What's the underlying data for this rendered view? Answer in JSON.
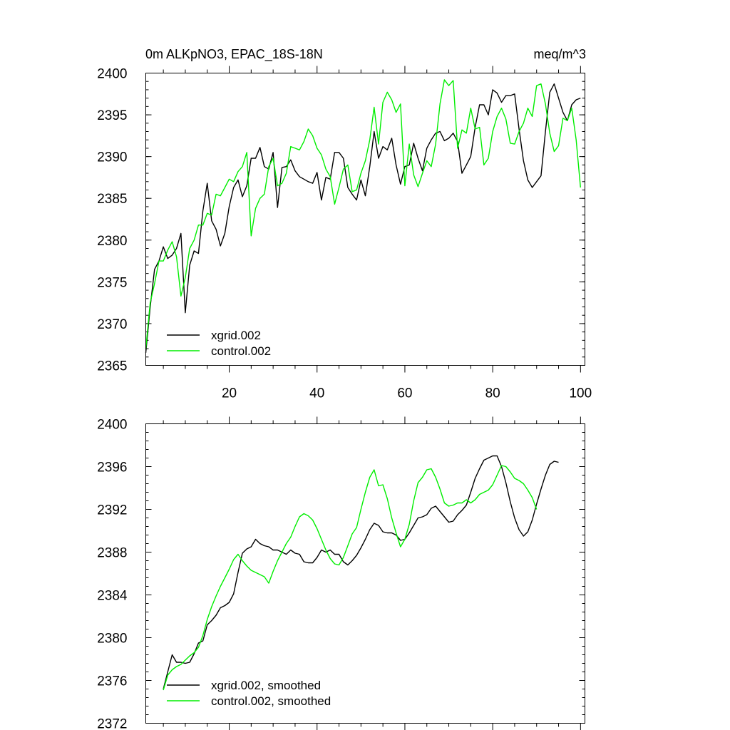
{
  "colors": {
    "xgrid": "#000000",
    "control": "#00ee00"
  },
  "chart_data": [
    {
      "type": "line",
      "title": "0m ALKpNO3, EPAC_18S-18N",
      "units": "meq/m^3",
      "xlabel": "",
      "ylabel": "",
      "xlim": [
        1,
        101
      ],
      "ylim": [
        2365,
        2400
      ],
      "xticks": [
        20,
        40,
        60,
        80,
        100
      ],
      "yticks": [
        2365,
        2370,
        2375,
        2380,
        2385,
        2390,
        2395,
        2400
      ],
      "xtick_labels": [
        "20",
        "40",
        "60",
        "80",
        "100"
      ],
      "ytick_labels": [
        "2365",
        "2370",
        "2375",
        "2380",
        "2385",
        "2390",
        "2395",
        "2400"
      ],
      "legend_position": "bottom-left",
      "series": [
        {
          "name": "xgrid.002",
          "color_key": "xgrid",
          "x_start": 1,
          "values": [
            2366.5,
            2372,
            2376.5,
            2377.5,
            2379.2,
            2377.8,
            2378.2,
            2379.0,
            2380.8,
            2371.3,
            2377.0,
            2378.7,
            2378.4,
            2383.5,
            2386.8,
            2382.3,
            2381.3,
            2379.3,
            2380.8,
            2384.0,
            2386.3,
            2387.2,
            2385.2,
            2386.5,
            2389.8,
            2389.8,
            2391.1,
            2388.8,
            2388.5,
            2390.5,
            2383.9,
            2388.7,
            2388.8,
            2389.6,
            2388.3,
            2387.6,
            2387.3,
            2387.0,
            2386.8,
            2388.1,
            2384.8,
            2387.5,
            2387.3,
            2390.5,
            2390.5,
            2389.8,
            2386.3,
            2385.5,
            2384.8,
            2387.2,
            2385.3,
            2388.8,
            2393.0,
            2389.8,
            2391.2,
            2390.8,
            2392.2,
            2389.0,
            2386.7,
            2388.8,
            2389.0,
            2391.6,
            2389.8,
            2388.3,
            2391.0,
            2392.0,
            2392.8,
            2393.0,
            2391.9,
            2392.2,
            2392.8,
            2391.8,
            2388.0,
            2389.0,
            2390.0,
            2393.5,
            2396.2,
            2396.2,
            2395.0,
            2398.0,
            2397.6,
            2396.5,
            2397.3,
            2397.3,
            2397.5,
            2393.3,
            2389.5,
            2387.2,
            2386.3,
            2387.0,
            2387.7,
            2393.0,
            2397.7,
            2398.7,
            2397.0,
            2395.3,
            2394.3,
            2396.2,
            2396.8,
            2397.0
          ]
        },
        {
          "name": "control.002",
          "color_key": "control",
          "x_start": 1,
          "values": [
            2367.0,
            2372.5,
            2374.8,
            2377.5,
            2377.5,
            2378.8,
            2379.8,
            2378.0,
            2373.3,
            2375.5,
            2379.0,
            2380.0,
            2381.8,
            2381.8,
            2383.2,
            2383.0,
            2385.5,
            2385.3,
            2386.3,
            2387.3,
            2387.0,
            2388.2,
            2388.8,
            2390.5,
            2380.5,
            2383.8,
            2385.0,
            2385.5,
            2388.8,
            2389.8,
            2386.5,
            2386.8,
            2388.0,
            2391.2,
            2391.0,
            2390.8,
            2391.8,
            2393.3,
            2392.5,
            2391.0,
            2390.2,
            2388.5,
            2387.6,
            2384.3,
            2386.3,
            2388.5,
            2389.0,
            2385.8,
            2386.0,
            2388.0,
            2389.5,
            2392.0,
            2395.9,
            2391.5,
            2396.5,
            2397.7,
            2396.8,
            2395.3,
            2396.3,
            2386.5,
            2391.5,
            2387.8,
            2386.4,
            2388.0,
            2389.5,
            2388.8,
            2391.5,
            2396.3,
            2399.2,
            2398.5,
            2399.1,
            2391.0,
            2393.2,
            2392.8,
            2395.8,
            2393.3,
            2393.5,
            2389.0,
            2389.8,
            2393.0,
            2394.8,
            2395.8,
            2394.5,
            2391.6,
            2391.5,
            2393.0,
            2394.0,
            2395.8,
            2394.8,
            2398.5,
            2398.7,
            2396.3,
            2392.8,
            2390.6,
            2391.3,
            2394.6,
            2394.3,
            2395.8,
            2392.0,
            2386.3
          ]
        }
      ]
    },
    {
      "type": "line",
      "title": "",
      "xlabel": "",
      "ylabel": "",
      "xlim": [
        1,
        101
      ],
      "ylim": [
        2372,
        2400
      ],
      "xticks": [
        20,
        40,
        60,
        80,
        100
      ],
      "yticks": [
        2372,
        2376,
        2380,
        2384,
        2388,
        2392,
        2396,
        2400
      ],
      "ytick_labels": [
        "2372",
        "2376",
        "2380",
        "2384",
        "2388",
        "2392",
        "2396",
        "2400"
      ],
      "legend_position": "bottom-left",
      "series": [
        {
          "name": "xgrid.002, smoothed",
          "color_key": "xgrid",
          "x_start": 5,
          "values": [
            2375.2,
            2376.8,
            2378.4,
            2377.7,
            2377.7,
            2377.6,
            2377.7,
            2378.5,
            2379.5,
            2379.7,
            2381.2,
            2381.6,
            2382.1,
            2382.8,
            2383.0,
            2383.3,
            2384.1,
            2386.1,
            2387.9,
            2388.3,
            2388.5,
            2389.2,
            2388.8,
            2388.6,
            2388.5,
            2388.2,
            2388.2,
            2388.0,
            2387.8,
            2388.2,
            2387.9,
            2387.8,
            2387.1,
            2387.0,
            2387.0,
            2387.5,
            2388.2,
            2388.0,
            2388.2,
            2387.8,
            2387.8,
            2387.1,
            2386.8,
            2387.2,
            2387.7,
            2388.4,
            2389.2,
            2390.1,
            2390.7,
            2390.5,
            2389.9,
            2389.8,
            2389.8,
            2389.6,
            2389.1,
            2389.2,
            2389.8,
            2390.5,
            2391.2,
            2391.3,
            2391.5,
            2392.1,
            2392.3,
            2391.8,
            2391.3,
            2390.8,
            2390.9,
            2391.5,
            2391.9,
            2392.4,
            2393.6,
            2394.9,
            2395.8,
            2396.6,
            2396.8,
            2397.0,
            2397.0,
            2396.0,
            2394.5,
            2392.7,
            2391.2,
            2390.1,
            2389.5,
            2389.9,
            2391.0,
            2392.5,
            2393.9,
            2395.2,
            2396.2,
            2396.5,
            2396.4
          ]
        },
        {
          "name": "control.002, smoothed",
          "color_key": "control",
          "x_start": 5,
          "values": [
            2375.1,
            2376.5,
            2377.0,
            2377.3,
            2377.5,
            2377.9,
            2378.3,
            2378.6,
            2379.1,
            2380.2,
            2381.7,
            2382.9,
            2383.9,
            2384.8,
            2385.6,
            2386.4,
            2387.3,
            2387.8,
            2387.2,
            2386.7,
            2386.3,
            2386.1,
            2385.9,
            2385.7,
            2385.1,
            2386.2,
            2387.2,
            2388.0,
            2388.8,
            2389.4,
            2390.4,
            2391.3,
            2391.6,
            2391.4,
            2391.0,
            2390.2,
            2389.2,
            2388.2,
            2387.4,
            2386.9,
            2386.8,
            2387.5,
            2388.6,
            2389.7,
            2390.3,
            2392.0,
            2393.6,
            2395.0,
            2395.7,
            2394.2,
            2394.3,
            2393.0,
            2391.2,
            2389.8,
            2388.5,
            2389.2,
            2390.6,
            2392.8,
            2394.5,
            2395.0,
            2395.7,
            2395.8,
            2395.0,
            2393.9,
            2392.6,
            2392.3,
            2392.4,
            2392.6,
            2392.6,
            2392.9,
            2392.6,
            2392.9,
            2393.4,
            2393.6,
            2393.8,
            2394.3,
            2395.2,
            2396.1,
            2396.0,
            2395.5,
            2394.9,
            2394.7,
            2394.4,
            2393.8,
            2393.1,
            2392.0
          ]
        }
      ]
    }
  ]
}
